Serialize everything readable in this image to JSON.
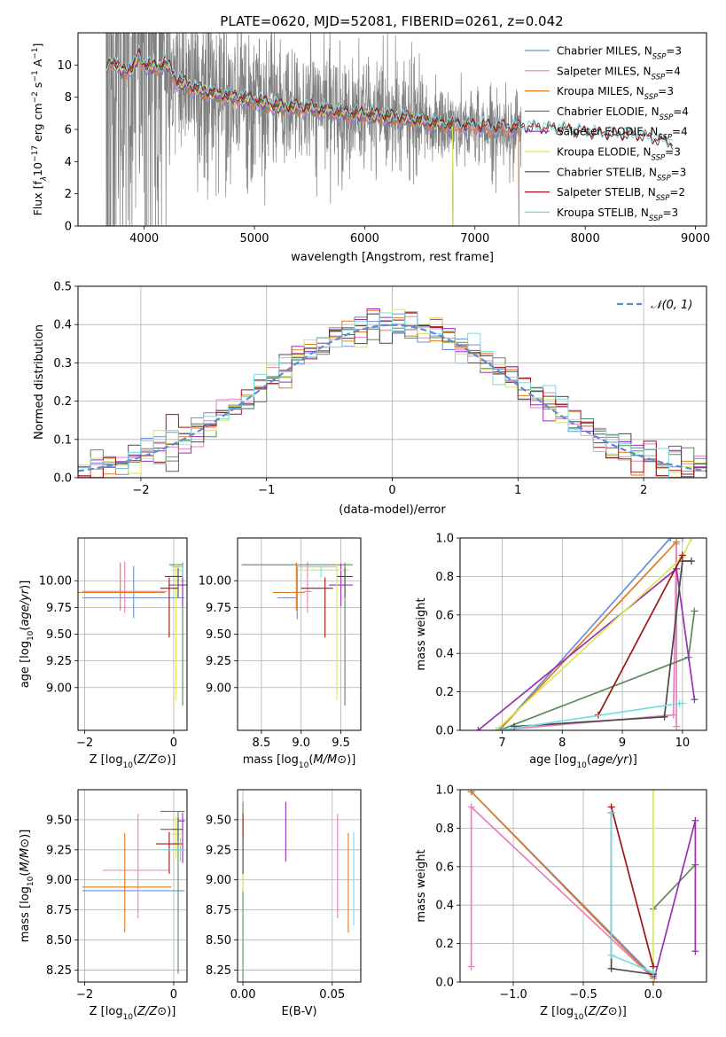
{
  "figure": {
    "title": "PLATE=0620, MJD=52081, FIBERID=0261, z=0.042"
  },
  "colors": {
    "chabrier_miles": "#6b8fd6",
    "salpeter_miles": "#e87fbf",
    "kroupa_miles": "#e07b1f",
    "chabrier_elodie": "#5d8a5d",
    "salpeter_elodie": "#9b2fb5",
    "kroupa_elodie": "#d4e85a",
    "chabrier_stelib": "#4a4a4a",
    "salpeter_stelib": "#a01414",
    "kroupa_stelib": "#78dbe2",
    "data": "#808080",
    "gaussian": "#5b8ad6"
  },
  "chart_data": [
    {
      "id": "spectrum",
      "type": "line",
      "title": "PLATE=0620, MJD=52081, FIBERID=0261, z=0.042",
      "xlabel": "wavelength [Angstrom, rest frame]",
      "ylabel": "Flux [f$_\\lambda$ 10$^{-17}$ erg cm$^{-2}$ s$^{-1}$ A$^{-1}$]",
      "ylabel_display": [
        "Flux [f",
        "λ",
        "10",
        "−17",
        " erg cm",
        "−2",
        " s",
        "−1",
        " A",
        "−1",
        "]"
      ],
      "xlim": [
        3400,
        9100
      ],
      "ylim": [
        0,
        12
      ],
      "xticks": [
        4000,
        5000,
        6000,
        7000,
        8000,
        9000
      ],
      "yticks": [
        0,
        2,
        4,
        6,
        8,
        10
      ],
      "legend_loc": "upper right",
      "legend": [
        {
          "label": "Chabrier MILES, N",
          "sub": "SSP",
          "val": "=3",
          "color_key": "chabrier_miles"
        },
        {
          "label": "Salpeter MILES, N",
          "sub": "SSP",
          "val": "=4",
          "color_key": "salpeter_miles"
        },
        {
          "label": "Kroupa MILES, N",
          "sub": "SSP",
          "val": "=3",
          "color_key": "kroupa_miles"
        },
        {
          "label": "Chabrier ELODIE, N",
          "sub": "SSP",
          "val": "=4",
          "color_key": "chabrier_elodie"
        },
        {
          "label": "Salpeter ELODIE, N",
          "sub": "SSP",
          "val": "=4",
          "color_key": "salpeter_elodie"
        },
        {
          "label": "Kroupa ELODIE, N",
          "sub": "SSP",
          "val": "=3",
          "color_key": "kroupa_elodie"
        },
        {
          "label": "Chabrier STELIB, N",
          "sub": "SSP",
          "val": "=3",
          "color_key": "chabrier_stelib"
        },
        {
          "label": "Salpeter STELIB, N",
          "sub": "SSP",
          "val": "=2",
          "color_key": "salpeter_stelib"
        },
        {
          "label": "Kroupa STELIB, N",
          "sub": "SSP",
          "val": "=3",
          "color_key": "kroupa_stelib"
        }
      ],
      "model_trend": {
        "x": [
          3650,
          3700,
          3800,
          3900,
          3950,
          4000,
          4100,
          4200,
          4300,
          4400,
          4500,
          4700,
          5000,
          5200,
          5500,
          5800,
          6000,
          6300,
          6500,
          6700,
          6900,
          7200,
          7500,
          7800,
          8000,
          8200,
          8500,
          8800
        ],
        "y": [
          9.5,
          10.3,
          9.6,
          9.8,
          10.6,
          10.0,
          9.8,
          10.1,
          9.0,
          8.7,
          8.4,
          8.1,
          7.8,
          7.4,
          7.3,
          7.0,
          6.9,
          6.7,
          6.5,
          6.3,
          6.2,
          6.1,
          6.0,
          5.9,
          5.7,
          5.6,
          5.5,
          5.0
        ]
      },
      "model_end_x": {
        "chabrier_miles": 7400,
        "salpeter_miles": 7400,
        "kroupa_miles": 7400,
        "chabrier_elodie": 6800,
        "salpeter_elodie": 6800,
        "kroupa_elodie": 6800,
        "chabrier_stelib": 8800,
        "salpeter_stelib": 8800,
        "kroupa_stelib": 8800
      }
    },
    {
      "id": "residuals",
      "type": "histogram",
      "xlabel": "(data-model)/error",
      "ylabel": "Normed distribution",
      "xlim": [
        -2.5,
        2.5
      ],
      "ylim": [
        0,
        0.5
      ],
      "xticks": [
        -2,
        -1,
        0,
        1,
        2
      ],
      "yticks": [
        0.0,
        0.1,
        0.2,
        0.3,
        0.4,
        0.5
      ],
      "bin_width": 0.1,
      "grid": true,
      "legend_loc": "upper right",
      "legend_label": "𝒩(0, 1)",
      "gaussian": {
        "mean": 0,
        "sigma": 1,
        "color_key": "gaussian"
      }
    },
    {
      "id": "age_vs_Z",
      "type": "errorbar",
      "xlabel": "Z [log10(Z/Z⊙)]",
      "ylabel": "age  [log10(age/yr)]",
      "xlim": [
        -2.15,
        0.3
      ],
      "ylim": [
        8.6,
        10.4
      ],
      "xticks": [
        -2,
        0
      ],
      "yticks": [
        9.0,
        9.25,
        9.5,
        9.75,
        10.0
      ],
      "grid": true,
      "points": [
        {
          "color_key": "chabrier_miles",
          "x": -0.9,
          "xerr": [
            1.15,
            1.15
          ],
          "y": 9.84,
          "yerr": [
            0.19,
            0.3
          ]
        },
        {
          "color_key": "salpeter_miles",
          "x": -1.1,
          "xerr": [
            0.95,
            0.95
          ],
          "y": 9.9,
          "yerr": [
            0.2,
            0.28
          ]
        },
        {
          "color_key": "kroupa_miles",
          "x": -1.2,
          "xerr": [
            0.95,
            1.0
          ],
          "y": 9.89,
          "yerr": [
            0.17,
            0.28
          ]
        },
        {
          "color_key": "chabrier_elodie",
          "x": 0.2,
          "xerr": [
            0.3,
            0.02
          ],
          "y": 10.15,
          "yerr": [
            1.32,
            0.02
          ]
        },
        {
          "color_key": "salpeter_elodie",
          "x": 0.2,
          "xerr": [
            0.3,
            0.1
          ],
          "y": 9.96,
          "yerr": [
            0.2,
            0.2
          ]
        },
        {
          "color_key": "kroupa_elodie",
          "x": 0.05,
          "xerr": [
            0.1,
            0.15
          ],
          "y": 10.1,
          "yerr": [
            1.22,
            0.06
          ]
        },
        {
          "color_key": "chabrier_stelib",
          "x": 0.1,
          "xerr": [
            0.3,
            0.1
          ],
          "y": 10.04,
          "yerr": [
            0.2,
            0.08
          ]
        },
        {
          "color_key": "salpeter_stelib",
          "x": -0.1,
          "xerr": [
            0.2,
            0.2
          ],
          "y": 9.93,
          "yerr": [
            0.46,
            0.1
          ]
        },
        {
          "color_key": "kroupa_stelib",
          "x": 0.2,
          "xerr": [
            0.25,
            0.03
          ],
          "y": 10.13,
          "yerr": [
            0.1,
            0.03
          ]
        }
      ]
    },
    {
      "id": "age_vs_mass",
      "type": "errorbar",
      "xlabel": "mass [log10(M/M⊙)]",
      "xlim": [
        8.2,
        9.75
      ],
      "ylim": [
        8.6,
        10.4
      ],
      "xticks": [
        8.5,
        9.0,
        9.5
      ],
      "yticks": [
        9.0,
        9.25,
        9.5,
        9.75,
        10.0
      ],
      "grid": true,
      "points": [
        {
          "color_key": "chabrier_miles",
          "x": 8.95,
          "xerr": [
            0.25,
            0.0
          ],
          "y": 9.84,
          "yerr": [
            0.2,
            0.3
          ]
        },
        {
          "color_key": "salpeter_miles",
          "x": 9.08,
          "xerr": [
            0.05,
            0.05
          ],
          "y": 9.9,
          "yerr": [
            0.2,
            0.28
          ]
        },
        {
          "color_key": "kroupa_miles",
          "x": 8.94,
          "xerr": [
            0.3,
            0.1
          ],
          "y": 9.89,
          "yerr": [
            0.17,
            0.28
          ]
        },
        {
          "color_key": "chabrier_elodie",
          "x": 9.55,
          "xerr": [
            1.3,
            0.1
          ],
          "y": 10.15,
          "yerr": [
            1.32,
            0.02
          ]
        },
        {
          "color_key": "salpeter_elodie",
          "x": 9.5,
          "xerr": [
            0.15,
            0.15
          ],
          "y": 9.96,
          "yerr": [
            0.2,
            0.2
          ]
        },
        {
          "color_key": "kroupa_elodie",
          "x": 9.45,
          "xerr": [
            0.5,
            0.15
          ],
          "y": 10.1,
          "yerr": [
            1.22,
            0.06
          ]
        },
        {
          "color_key": "chabrier_stelib",
          "x": 9.55,
          "xerr": [
            0.1,
            0.1
          ],
          "y": 10.04,
          "yerr": [
            0.2,
            0.08
          ]
        },
        {
          "color_key": "salpeter_stelib",
          "x": 9.3,
          "xerr": [
            0.3,
            0.1
          ],
          "y": 9.93,
          "yerr": [
            0.46,
            0.1
          ]
        },
        {
          "color_key": "kroupa_stelib",
          "x": 9.25,
          "xerr": [
            0.3,
            0.2
          ],
          "y": 10.13,
          "yerr": [
            0.1,
            0.03
          ]
        }
      ]
    },
    {
      "id": "weight_vs_age",
      "type": "line",
      "xlabel": "age  [log10(age/yr)]",
      "ylabel": "mass weight",
      "xlim": [
        6.3,
        10.4
      ],
      "ylim": [
        0,
        1
      ],
      "xticks": [
        7,
        8,
        9,
        10
      ],
      "yticks": [
        0.0,
        0.2,
        0.4,
        0.6,
        0.8,
        1.0
      ],
      "grid": true,
      "series": [
        {
          "color_key": "chabrier_miles",
          "x": [
            6.95,
            9.8,
            10.0
          ],
          "y": [
            0.0,
            1.0,
            1.0
          ]
        },
        {
          "color_key": "salpeter_miles",
          "x": [
            6.9,
            9.85,
            9.9,
            9.9
          ],
          "y": [
            0.0,
            0.08,
            0.97,
            0.02
          ]
        },
        {
          "color_key": "kroupa_miles",
          "x": [
            6.95,
            9.9
          ],
          "y": [
            0.0,
            0.98
          ]
        },
        {
          "color_key": "chabrier_elodie",
          "x": [
            6.95,
            10.1,
            10.2
          ],
          "y": [
            0.0,
            0.38,
            0.62
          ]
        },
        {
          "color_key": "salpeter_elodie",
          "x": [
            6.6,
            9.9,
            10.2
          ],
          "y": [
            0.0,
            0.84,
            0.16
          ]
        },
        {
          "color_key": "kroupa_elodie",
          "x": [
            6.9,
            10.0,
            10.15
          ],
          "y": [
            0.0,
            0.9,
            1.0
          ]
        },
        {
          "color_key": "chabrier_stelib",
          "x": [
            7.2,
            9.7,
            10.0,
            10.15
          ],
          "y": [
            0.02,
            0.07,
            0.88,
            0.88
          ]
        },
        {
          "color_key": "salpeter_stelib",
          "x": [
            8.6,
            10.0
          ],
          "y": [
            0.08,
            0.91
          ]
        },
        {
          "color_key": "kroupa_stelib",
          "x": [
            6.95,
            9.95,
            10.0
          ],
          "y": [
            0.0,
            0.14,
            0.14
          ]
        }
      ]
    },
    {
      "id": "mass_vs_Z",
      "type": "errorbar",
      "xlabel": "Z [log10(Z/Z⊙)]",
      "ylabel": "mass [log10(M/M⊙)]",
      "xlim": [
        -2.15,
        0.3
      ],
      "ylim": [
        8.15,
        9.75
      ],
      "xticks": [
        -2,
        0
      ],
      "yticks": [
        8.25,
        8.5,
        8.75,
        9.0,
        9.25,
        9.5
      ],
      "grid": true,
      "points": [
        {
          "color_key": "chabrier_miles",
          "x": -0.9,
          "xerr": [
            1.15,
            1.15
          ],
          "y": 8.91,
          "yerr": [
            0.0,
            0.0
          ]
        },
        {
          "color_key": "salpeter_miles",
          "x": -0.8,
          "xerr": [
            0.8,
            0.7
          ],
          "y": 9.08,
          "yerr": [
            0.4,
            0.47
          ]
        },
        {
          "color_key": "kroupa_miles",
          "x": -1.1,
          "xerr": [
            0.95,
            1.05
          ],
          "y": 8.94,
          "yerr": [
            0.38,
            0.45
          ]
        },
        {
          "color_key": "chabrier_elodie",
          "x": 0.1,
          "xerr": [
            0.4,
            0.15
          ],
          "y": 9.57,
          "yerr": [
            1.35,
            0.0
          ]
        },
        {
          "color_key": "salpeter_elodie",
          "x": 0.2,
          "xerr": [
            0.1,
            0.05
          ],
          "y": 9.49,
          "yerr": [
            0.35,
            0.07
          ]
        },
        {
          "color_key": "kroupa_elodie",
          "x": 0.05,
          "xerr": [
            0.1,
            0.15
          ],
          "y": 9.38,
          "yerr": [
            0.2,
            0.15
          ]
        },
        {
          "color_key": "chabrier_stelib",
          "x": 0.1,
          "xerr": [
            0.4,
            0.1
          ],
          "y": 9.42,
          "yerr": [
            0.1,
            0.1
          ]
        },
        {
          "color_key": "salpeter_stelib",
          "x": -0.1,
          "xerr": [
            0.3,
            0.3
          ],
          "y": 9.3,
          "yerr": [
            0.25,
            0.1
          ]
        },
        {
          "color_key": "kroupa_stelib",
          "x": 0.15,
          "xerr": [
            0.4,
            0.1
          ],
          "y": 9.25,
          "yerr": [
            0.1,
            0.1
          ]
        }
      ]
    },
    {
      "id": "mass_vs_ebv",
      "type": "errorbar",
      "xlabel": "E(B-V)",
      "xlim": [
        -0.003,
        0.066
      ],
      "ylim": [
        8.15,
        9.75
      ],
      "xticks": [
        0.0,
        0.05
      ],
      "yticks": [
        8.25,
        8.5,
        8.75,
        9.0,
        9.25,
        9.5
      ],
      "grid": true,
      "points": [
        {
          "color_key": "chabrier_miles",
          "x": 0.0,
          "xerr": [
            0,
            0
          ],
          "y": 8.91,
          "yerr": [
            0.0,
            0.0
          ]
        },
        {
          "color_key": "salpeter_miles",
          "x": 0.053,
          "xerr": [
            0,
            0
          ],
          "y": 9.08,
          "yerr": [
            0.4,
            0.47
          ]
        },
        {
          "color_key": "kroupa_miles",
          "x": 0.059,
          "xerr": [
            0,
            0
          ],
          "y": 8.94,
          "yerr": [
            0.38,
            0.45
          ]
        },
        {
          "color_key": "chabrier_elodie",
          "x": 0.0,
          "xerr": [
            0,
            0
          ],
          "y": 8.95,
          "yerr": [
            0.8,
            0.7
          ]
        },
        {
          "color_key": "salpeter_elodie",
          "x": 0.024,
          "xerr": [
            0,
            0
          ],
          "y": 9.4,
          "yerr": [
            0.25,
            0.25
          ]
        },
        {
          "color_key": "kroupa_elodie",
          "x": 0.0,
          "xerr": [
            0,
            0
          ],
          "y": 9.1,
          "yerr": [
            0.2,
            0.15
          ]
        },
        {
          "color_key": "chabrier_stelib",
          "x": 0.0,
          "xerr": [
            0,
            0
          ],
          "y": 9.3,
          "yerr": [
            0.25,
            0.25
          ]
        },
        {
          "color_key": "salpeter_stelib",
          "x": 0.0,
          "xerr": [
            0,
            0
          ],
          "y": 9.45,
          "yerr": [
            0.1,
            0.1
          ]
        },
        {
          "color_key": "kroupa_stelib",
          "x": 0.062,
          "xerr": [
            0,
            0
          ],
          "y": 9.0,
          "yerr": [
            0.38,
            0.4
          ]
        }
      ]
    },
    {
      "id": "weight_vs_Z",
      "type": "line",
      "xlabel": "Z [log10(Z/Z⊙)]",
      "ylabel": "mass weight",
      "xlim": [
        -1.38,
        0.38
      ],
      "ylim": [
        0,
        1
      ],
      "xticks": [
        -1.0,
        -0.5,
        0.0
      ],
      "yticks": [
        0.0,
        0.2,
        0.4,
        0.6,
        0.8,
        1.0
      ],
      "grid": true,
      "series": [
        {
          "color_key": "chabrier_miles",
          "x": [
            -1.3,
            0.0
          ],
          "y": [
            0.99,
            0.03
          ]
        },
        {
          "color_key": "salpeter_miles",
          "x": [
            -1.3,
            -1.3,
            0.0
          ],
          "y": [
            0.08,
            0.91,
            0.02
          ]
        },
        {
          "color_key": "kroupa_miles",
          "x": [
            -1.3,
            0.0
          ],
          "y": [
            0.99,
            0.02
          ]
        },
        {
          "color_key": "chabrier_elodie",
          "x": [
            0.0,
            0.3
          ],
          "y": [
            0.38,
            0.61
          ]
        },
        {
          "color_key": "salpeter_elodie",
          "x": [
            0.0,
            0.3,
            0.3
          ],
          "y": [
            0.0,
            0.84,
            0.16
          ]
        },
        {
          "color_key": "kroupa_elodie",
          "x": [
            0.0,
            0.0
          ],
          "y": [
            0.0,
            1.0
          ]
        },
        {
          "color_key": "chabrier_stelib",
          "x": [
            -0.3,
            -0.3,
            0.0
          ],
          "y": [
            0.88,
            0.07,
            0.04
          ]
        },
        {
          "color_key": "salpeter_stelib",
          "x": [
            -0.3,
            0.0
          ],
          "y": [
            0.91,
            0.08
          ]
        },
        {
          "color_key": "kroupa_stelib",
          "x": [
            -0.3,
            -0.3,
            0.0
          ],
          "y": [
            0.88,
            0.14,
            0.05
          ]
        }
      ]
    }
  ]
}
